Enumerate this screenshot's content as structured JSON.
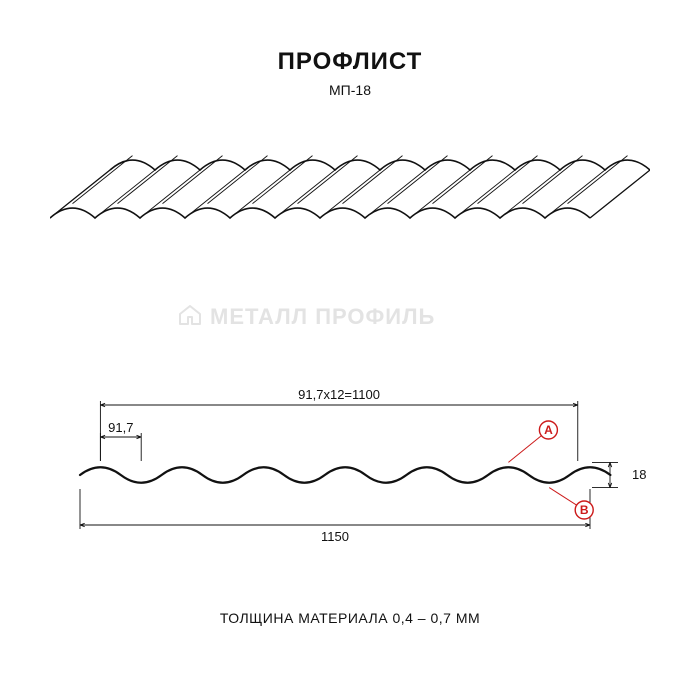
{
  "title": {
    "text": "ПРОФЛИСТ",
    "fontsize": 24,
    "color": "#111111",
    "weight": 900
  },
  "subtitle": {
    "text": "МП-18",
    "fontsize": 14,
    "color": "#111111"
  },
  "watermark": {
    "text": "МЕТАЛЛ ПРОФИЛЬ",
    "fontsize": 22,
    "color": "#e3e3e3",
    "icon_color": "#e3e3e3"
  },
  "footer": {
    "text": "ТОЛЩИНА МАТЕРИАЛА 0,4 – 0,7 ММ",
    "fontsize": 14,
    "color": "#111111"
  },
  "iso_view": {
    "type": "corrugated-3d",
    "waves": 12,
    "stroke": "#111111",
    "stroke_width": 1.6,
    "background": "#ffffff"
  },
  "section_view": {
    "type": "corrugated-profile",
    "waves": 12,
    "wave_pitch_mm": 91.7,
    "amplitude_mm": 18,
    "total_width_mm": 1150,
    "useful_width_mm": 1100,
    "stroke": "#111111",
    "stroke_width": 2.2,
    "dim_stroke": "#111111",
    "dim_stroke_width": 0.9,
    "dim_fontsize": 13,
    "dimensions": {
      "top_calc": "91,7x12=1100",
      "pitch": "91,7",
      "bottom_total": "1150",
      "height": "18"
    },
    "markers": {
      "A": {
        "label": "A",
        "stroke": "#cc1a1a",
        "fill": "#ffffff",
        "text_color": "#cc1a1a",
        "r": 9,
        "fontsize": 12
      },
      "B": {
        "label": "B",
        "stroke": "#cc1a1a",
        "fill": "#ffffff",
        "text_color": "#cc1a1a",
        "r": 9,
        "fontsize": 12
      }
    }
  }
}
